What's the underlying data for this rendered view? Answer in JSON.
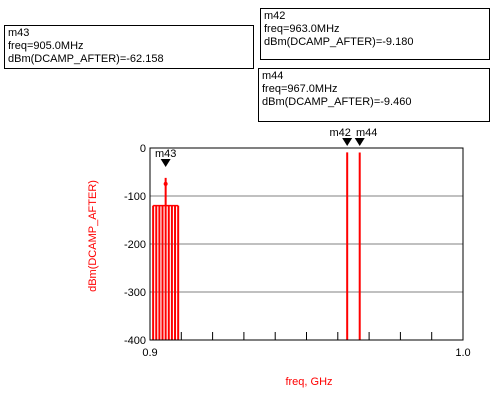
{
  "markers": [
    {
      "id": "m43",
      "name": "m43",
      "freq_line": "freq=905.0MHz",
      "value_line": "dBm(DCAMP_AFTER)=-62.158"
    },
    {
      "id": "m42",
      "name": "m42",
      "freq_line": "freq=963.0MHz",
      "value_line": "dBm(DCAMP_AFTER)=-9.180"
    },
    {
      "id": "m44",
      "name": "m44",
      "freq_line": "freq=967.0MHz",
      "value_line": "dBm(DCAMP_AFTER)=-9.460"
    }
  ],
  "colors": {
    "trace": "#ff0000",
    "axis_label": "#ff0000",
    "grid": "#808080",
    "marker": "#000000"
  },
  "chart_data": {
    "type": "bar",
    "xlabel": "freq, GHz",
    "ylabel": "dBm(DCAMP_AFTER)",
    "xlim": [
      0.9,
      1.0
    ],
    "ylim": [
      -400,
      0
    ],
    "x_ticks": [
      {
        "value": 0.9,
        "label": "0.9"
      },
      {
        "value": 1.0,
        "label": "1.0"
      }
    ],
    "x_minor_ticks": [
      0.91,
      0.92,
      0.93,
      0.94,
      0.95,
      0.96,
      0.97,
      0.98,
      0.99
    ],
    "y_ticks": [
      {
        "value": 0,
        "label": "0"
      },
      {
        "value": -100,
        "label": "-100"
      },
      {
        "value": -200,
        "label": "-200"
      },
      {
        "value": -300,
        "label": "-300"
      },
      {
        "value": -400,
        "label": "-400"
      }
    ],
    "grid": true,
    "bars": [
      {
        "x": 0.901,
        "y": -120
      },
      {
        "x": 0.902,
        "y": -120
      },
      {
        "x": 0.903,
        "y": -120
      },
      {
        "x": 0.904,
        "y": -120
      },
      {
        "x": 0.905,
        "y": -62.158
      },
      {
        "x": 0.906,
        "y": -120
      },
      {
        "x": 0.907,
        "y": -120
      },
      {
        "x": 0.908,
        "y": -120
      },
      {
        "x": 0.909,
        "y": -120
      },
      {
        "x": 0.963,
        "y": -9.18
      },
      {
        "x": 0.967,
        "y": -9.46
      }
    ],
    "markers_on_plot": [
      {
        "name": "m43",
        "x": 0.905,
        "y": -62.158,
        "label": "m43"
      },
      {
        "name": "m42",
        "x": 0.963,
        "y": -9.18,
        "label": "m42"
      },
      {
        "name": "m44",
        "x": 0.967,
        "y": -9.46,
        "label": "m44"
      }
    ]
  }
}
